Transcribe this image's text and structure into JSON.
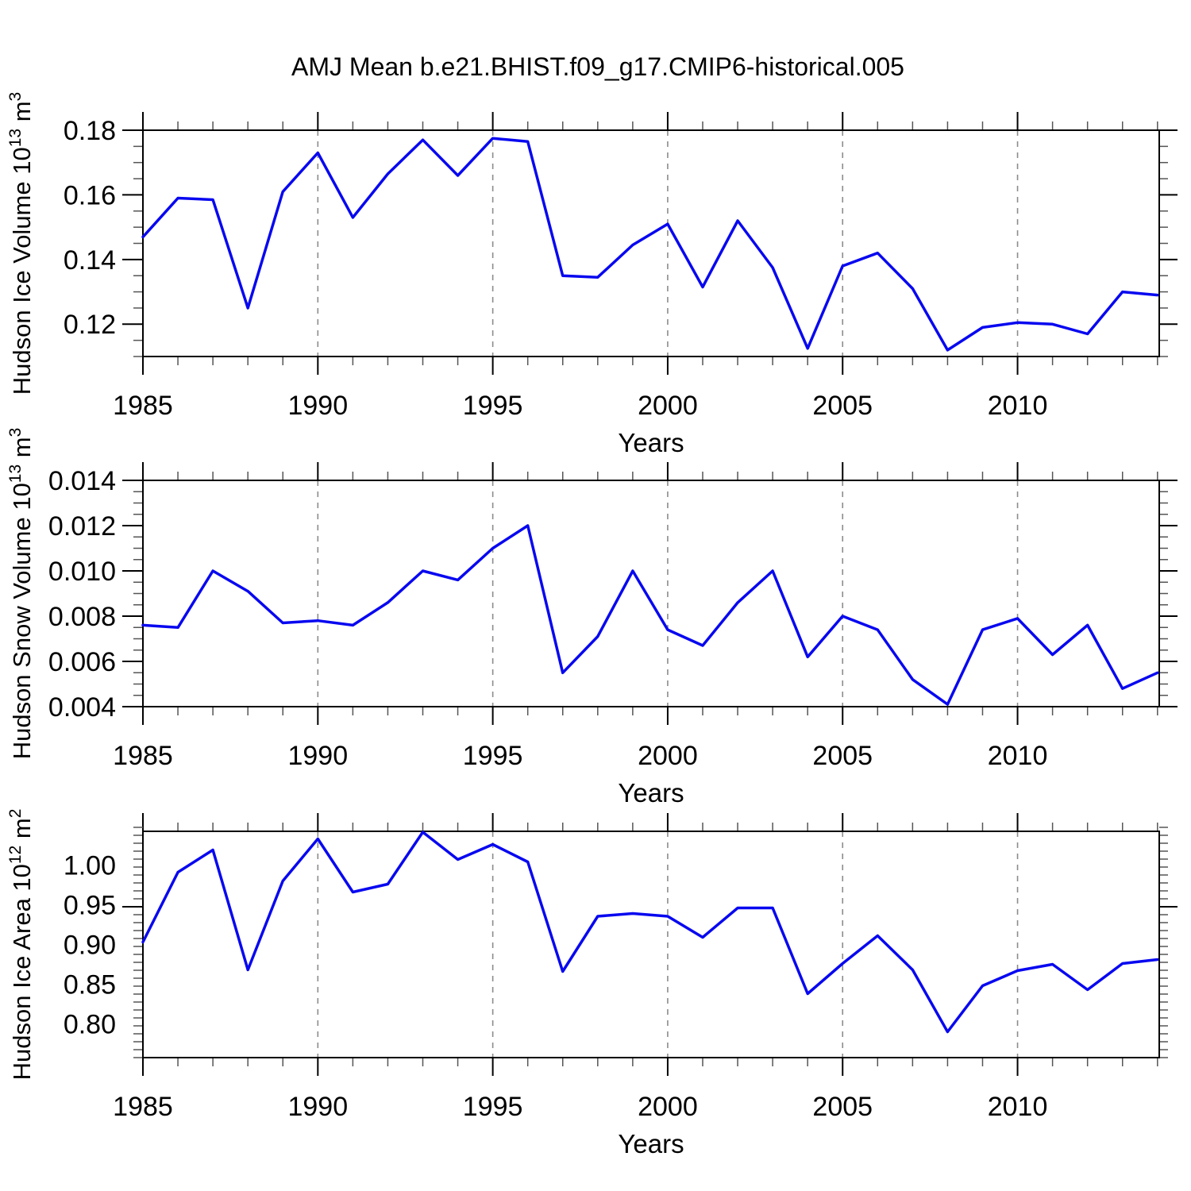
{
  "title": "AMJ Mean b.e21.BHIST.f09_g17.CMIP6-historical.005",
  "line_color": "#0808f0",
  "grid_color": "#8c8c8c",
  "axis_color": "#000000",
  "chart_data": [
    {
      "type": "line",
      "name": "ice-volume-panel",
      "ylabel_parts": [
        {
          "t": "Hudson Ice Volume 10"
        },
        {
          "t": "13",
          "sup": true
        },
        {
          "t": " m"
        },
        {
          "t": "3",
          "sup": true
        }
      ],
      "xlabel": "Years",
      "xlim": [
        1985,
        2014.05
      ],
      "ylim": [
        0.11,
        0.18
      ],
      "x": [
        1985,
        1986,
        1987,
        1988,
        1989,
        1990,
        1991,
        1992,
        1993,
        1994,
        1995,
        1996,
        1997,
        1998,
        1999,
        2000,
        2001,
        2002,
        2003,
        2004,
        2005,
        2006,
        2007,
        2008,
        2009,
        2010,
        2011,
        2012,
        2013,
        2014
      ],
      "values": [
        0.147,
        0.159,
        0.1585,
        0.125,
        0.161,
        0.173,
        0.153,
        0.1665,
        0.177,
        0.166,
        0.1775,
        0.1765,
        0.135,
        0.1345,
        0.1445,
        0.151,
        0.1315,
        0.152,
        0.1375,
        0.1125,
        0.138,
        0.142,
        0.131,
        0.112,
        0.119,
        0.1205,
        0.12,
        0.117,
        0.13,
        0.129
      ],
      "ymajor_values": [
        0.18,
        0.16,
        0.14,
        0.12
      ],
      "ymajor_labels": [
        "0.18",
        "0.16",
        "0.14",
        "0.12"
      ],
      "yminor_step": 0.005,
      "xmajor_values": [
        1985,
        1990,
        1995,
        2000,
        2005,
        2010
      ],
      "xmajor_labels": [
        "1985",
        "1990",
        "1995",
        "2000",
        "2005",
        "2010"
      ],
      "xminor_step": 1,
      "grid_years": [
        1990,
        1995,
        2000,
        2005,
        2010
      ]
    },
    {
      "type": "line",
      "name": "snow-volume-panel",
      "ylabel_parts": [
        {
          "t": "Hudson Snow Volume 10"
        },
        {
          "t": "13",
          "sup": true
        },
        {
          "t": " m"
        },
        {
          "t": "3",
          "sup": true
        }
      ],
      "xlabel": "Years",
      "xlim": [
        1985,
        2014.05
      ],
      "ylim": [
        0.004,
        0.014
      ],
      "x": [
        1985,
        1986,
        1987,
        1988,
        1989,
        1990,
        1991,
        1992,
        1993,
        1994,
        1995,
        1996,
        1997,
        1998,
        1999,
        2000,
        2001,
        2002,
        2003,
        2004,
        2005,
        2006,
        2007,
        2008,
        2009,
        2010,
        2011,
        2012,
        2013,
        2014
      ],
      "values": [
        0.0076,
        0.0075,
        0.01,
        0.0091,
        0.0077,
        0.0078,
        0.0076,
        0.0086,
        0.01,
        0.0096,
        0.011,
        0.012,
        0.0055,
        0.0071,
        0.01,
        0.0074,
        0.0067,
        0.0086,
        0.01,
        0.0062,
        0.008,
        0.0074,
        0.0052,
        0.0041,
        0.0074,
        0.0079,
        0.0063,
        0.0076,
        0.0048,
        0.0055
      ],
      "ymajor_values": [
        0.014,
        0.012,
        0.01,
        0.008,
        0.006,
        0.004
      ],
      "ymajor_labels": [
        "0.014",
        "0.012",
        "0.010",
        "0.008",
        "0.006",
        "0.004"
      ],
      "yminor_step": 0.0005,
      "xmajor_values": [
        1985,
        1990,
        1995,
        2000,
        2005,
        2010
      ],
      "xmajor_labels": [
        "1985",
        "1990",
        "1995",
        "2000",
        "2005",
        "2010"
      ],
      "xminor_step": 1,
      "grid_years": [
        1990,
        1995,
        2000,
        2005,
        2010
      ]
    },
    {
      "type": "line",
      "name": "ice-area-panel",
      "ylabel_parts": [
        {
          "t": "Hudson Ice Area 10"
        },
        {
          "t": "12",
          "sup": true
        },
        {
          "t": " m"
        },
        {
          "t": "2",
          "sup": true
        }
      ],
      "xlabel": "Years",
      "xlim": [
        1985,
        2014.05
      ],
      "ylim": [
        0.7575,
        1.0425
      ],
      "x": [
        1985,
        1986,
        1987,
        1988,
        1989,
        1990,
        1991,
        1992,
        1993,
        1994,
        1995,
        1996,
        1997,
        1998,
        1999,
        2000,
        2001,
        2002,
        2003,
        2004,
        2005,
        2006,
        2007,
        2008,
        2009,
        2010,
        2011,
        2012,
        2013,
        2014
      ],
      "values": [
        0.903,
        0.991,
        1.019,
        0.868,
        0.98,
        1.033,
        0.966,
        0.976,
        1.0415,
        1.007,
        1.026,
        1.004,
        0.866,
        0.9355,
        0.939,
        0.9355,
        0.909,
        0.946,
        0.946,
        0.838,
        0.876,
        0.911,
        0.868,
        0.79,
        0.848,
        0.867,
        0.875,
        0.843,
        0.876,
        0.881
      ],
      "ymajor_values": [
        1.0,
        0.95,
        0.9,
        0.85,
        0.8
      ],
      "ymajor_labels": [
        "1.00",
        "0.95",
        "0.90",
        "0.85",
        "0.80"
      ],
      "yminor_step": 0.01,
      "xmajor_values": [
        1985,
        1990,
        1995,
        2000,
        2005,
        2010
      ],
      "xmajor_labels": [
        "1985",
        "1990",
        "1995",
        "2000",
        "2005",
        "2010"
      ],
      "xminor_step": 1,
      "grid_years": [
        1990,
        1995,
        2000,
        2005,
        2010
      ]
    }
  ]
}
